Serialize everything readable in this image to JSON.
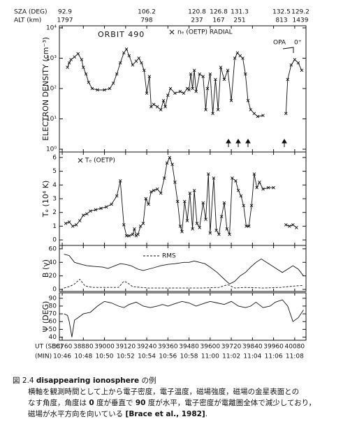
{
  "header": {
    "sza_label": "SZA (DEG)",
    "alt_label": "ALT (km)",
    "sza": [
      92.9,
      106.2,
      120.8,
      126.8,
      131.3,
      132.5,
      129.2
    ],
    "alt": [
      1797,
      798,
      237,
      167,
      251,
      813,
      1439
    ]
  },
  "x_axis": {
    "label": "UT (SEC)",
    "min_label": "(MIN)",
    "xlim": [
      38744,
      40144
    ],
    "xticks": [
      38760,
      38880,
      39000,
      39120,
      39240,
      39360,
      39480,
      39600,
      39720,
      39840,
      39960,
      40080
    ],
    "min_ticks": [
      "10:46",
      "10:48",
      "10:50",
      "10:52",
      "10:54",
      "10:56",
      "10:58",
      "11:00",
      "11:02",
      "11:04",
      "11:06",
      "11:08"
    ]
  },
  "chart_data": [
    {
      "type": "line",
      "title": "ORBIT 490",
      "ylabel": "ELECTRON DENSITY (cm⁻³)",
      "log": true,
      "ylim": [
        0.81,
        11700
      ],
      "yticks": [
        {
          "value": 1,
          "label": "10⁰"
        },
        {
          "value": 10,
          "label": "10¹"
        },
        {
          "value": 100,
          "label": "10²"
        },
        {
          "value": 1000,
          "label": "10³"
        },
        {
          "value": 10000,
          "label": "10⁴"
        }
      ],
      "annotations": [
        "OPA",
        "0⁺"
      ],
      "series": [
        {
          "name": "nₑ (OETP) RADIAL",
          "color": "#111111",
          "marker": "x",
          "x": [
            38790,
            38800,
            38810,
            38830,
            38850,
            38870,
            38880,
            38895,
            38910,
            38930,
            38960,
            39000,
            39030,
            39050,
            39070,
            39090,
            39110,
            39125,
            39140,
            39160,
            39180,
            39195,
            39210,
            39225,
            39240,
            39255,
            39265,
            39280,
            39300,
            39320,
            39335,
            39345,
            39360,
            39375,
            39400,
            39430,
            39450,
            39470,
            39480,
            39490,
            39500,
            39510,
            39520,
            39540,
            39560,
            39575,
            39585,
            39600,
            39615,
            39630,
            39645,
            39660,
            39680,
            39700,
            39720,
            39740,
            39755,
            39770,
            39785,
            39800,
            39815,
            39830,
            39850,
            39870,
            39900,
            39930,
            40030,
            40040,
            40060,
            40080,
            40100,
            40120
          ],
          "values": [
            500,
            700,
            900,
            1100,
            1400,
            900,
            500,
            300,
            160,
            100,
            90,
            90,
            100,
            150,
            300,
            700,
            1500,
            2000,
            1200,
            600,
            800,
            1000,
            700,
            400,
            70,
            250,
            25,
            30,
            25,
            20,
            40,
            25,
            60,
            100,
            70,
            80,
            70,
            100,
            90,
            300,
            100,
            400,
            80,
            300,
            250,
            20,
            100,
            300,
            15,
            200,
            20,
            500,
            200,
            400,
            40,
            1000,
            1500,
            1200,
            1000,
            300,
            40,
            20,
            15,
            12,
            13,
            null,
            15,
            200,
            600,
            900,
            700,
            400
          ]
        }
      ]
    },
    {
      "type": "line",
      "ylabel": "Tₑ (10⁴ K)",
      "log": false,
      "ylim": [
        -0.4,
        6.4
      ],
      "yticks": [
        0,
        1,
        2,
        3,
        4,
        5,
        6
      ],
      "series": [
        {
          "name": "Tₑ (OETP)",
          "color": "#111111",
          "marker": "x",
          "x": [
            38780,
            38800,
            38820,
            38840,
            38860,
            38880,
            38900,
            38920,
            38950,
            38980,
            39010,
            39040,
            39070,
            39090,
            39110,
            39125,
            39140,
            39160,
            39170,
            39180,
            39190,
            39205,
            39220,
            39235,
            39250,
            39265,
            39280,
            39300,
            39320,
            39340,
            39355,
            39370,
            39385,
            39400,
            39415,
            39430,
            39440,
            39455,
            39470,
            39485,
            39500,
            39510,
            39525,
            39540,
            39560,
            39575,
            39590,
            39600,
            39620,
            39635,
            39650,
            39665,
            39680,
            39695,
            39710,
            39725,
            39745,
            39760,
            39775,
            39790,
            39805,
            39820,
            39835,
            39850,
            39865,
            39880,
            39900,
            39930,
            39960,
            40000,
            40030,
            40050,
            40070,
            40090
          ],
          "values": [
            1.2,
            1.3,
            1.0,
            1.1,
            1.4,
            1.8,
            1.9,
            2.1,
            2.2,
            2.3,
            2.4,
            2.6,
            3.2,
            4.3,
            1.1,
            0.3,
            0.3,
            0.4,
            0.8,
            0.3,
            0.4,
            1.0,
            1.2,
            3.0,
            2.6,
            3.5,
            3.6,
            3.7,
            3.4,
            4.5,
            5.6,
            6.0,
            5.5,
            4.2,
            2.8,
            1.0,
            0.6,
            2.8,
            1.4,
            3.4,
            0.8,
            3.6,
            1.2,
            0.9,
            2.7,
            1.5,
            4.8,
            0.5,
            4.5,
            0.7,
            0.4,
            1.7,
            2.7,
            0.8,
            0.4,
            4.5,
            4.3,
            3.6,
            3.2,
            2.5,
            1.0,
            1.0,
            2.5,
            4.8,
            3.8,
            4.2,
            3.7,
            3.8,
            3.8,
            null,
            1.1,
            1.0,
            1.1,
            0.9
          ]
        }
      ]
    },
    {
      "type": "line",
      "ylabel": "B (γ)",
      "log": false,
      "ylim": [
        -3,
        65
      ],
      "yticks": [
        0,
        20,
        40,
        60
      ],
      "series": [
        {
          "color": "#111111",
          "x": [
            38770,
            38800,
            38830,
            38870,
            38900,
            38940,
            38990,
            39020,
            39060,
            39090,
            39120,
            39150,
            39190,
            39220,
            39250,
            39280,
            39320,
            39360,
            39400,
            39450,
            39480,
            39510,
            39540,
            39570,
            39600,
            39640,
            39680,
            39710,
            39740,
            39770,
            39800,
            39830,
            39860,
            39890,
            39920,
            39950,
            39980,
            40010,
            40040,
            40070,
            40100,
            40130
          ],
          "values": [
            52,
            50,
            40,
            37,
            35,
            34,
            33,
            31,
            35,
            38,
            37,
            35,
            30,
            28,
            30,
            32,
            35,
            37,
            38,
            40,
            40,
            42,
            40,
            38,
            33,
            25,
            15,
            8,
            12,
            20,
            25,
            33,
            40,
            45,
            40,
            35,
            30,
            25,
            30,
            35,
            30,
            20
          ]
        },
        {
          "name": "RMS",
          "color": "#111111",
          "dash": true,
          "x": [
            38770,
            38800,
            38830,
            38860,
            38890,
            38930,
            39000,
            39080,
            39110,
            39130,
            39160,
            39250,
            39400,
            39550,
            39650,
            39700,
            39740,
            39800,
            39900,
            40000,
            40080,
            40130
          ],
          "values": [
            2,
            4,
            8,
            15,
            5,
            3,
            3,
            3,
            12,
            10,
            4,
            2,
            2,
            2,
            3,
            7,
            2,
            3,
            2,
            3,
            5,
            6
          ]
        }
      ]
    },
    {
      "type": "line",
      "ylabel": "Ψ (DEG)",
      "log": false,
      "ylim": [
        36,
        97
      ],
      "yticks": [
        40,
        50,
        60,
        70,
        80,
        90
      ],
      "series": [
        {
          "color": "#111111",
          "x": [
            38770,
            38790,
            38800,
            38815,
            38830,
            38850,
            38880,
            38920,
            38960,
            39000,
            39040,
            39080,
            39110,
            39140,
            39180,
            39220,
            39260,
            39300,
            39330,
            39360,
            39400,
            39440,
            39480,
            39520,
            39560,
            39600,
            39640,
            39680,
            39720,
            39760,
            39800,
            39830,
            39860,
            39900,
            39940,
            39970,
            40010,
            40040,
            40070,
            40100,
            40130
          ],
          "values": [
            70,
            68,
            60,
            40,
            62,
            65,
            70,
            72,
            80,
            86,
            84,
            80,
            78,
            82,
            85,
            80,
            78,
            80,
            82,
            80,
            83,
            86,
            84,
            80,
            83,
            86,
            84,
            82,
            86,
            80,
            78,
            80,
            85,
            78,
            80,
            85,
            88,
            80,
            60,
            65,
            75
          ]
        }
      ]
    }
  ],
  "caption": {
    "label": "図 2.4",
    "title": "disappearing ionosphere",
    "title_suffix": "の例",
    "line1": "横軸を観測時間として上から電子密度，電子温度，磁場強度，磁場の金星表面との",
    "line2": [
      "なす角度，角度は ",
      "0",
      " 度が垂直で ",
      "90",
      " 度が水平，電子密度が電離圏全体で減少しており，"
    ],
    "line3": [
      "磁場が水平方向を向いている ",
      "[Brace et al., 1982]",
      "."
    ]
  }
}
